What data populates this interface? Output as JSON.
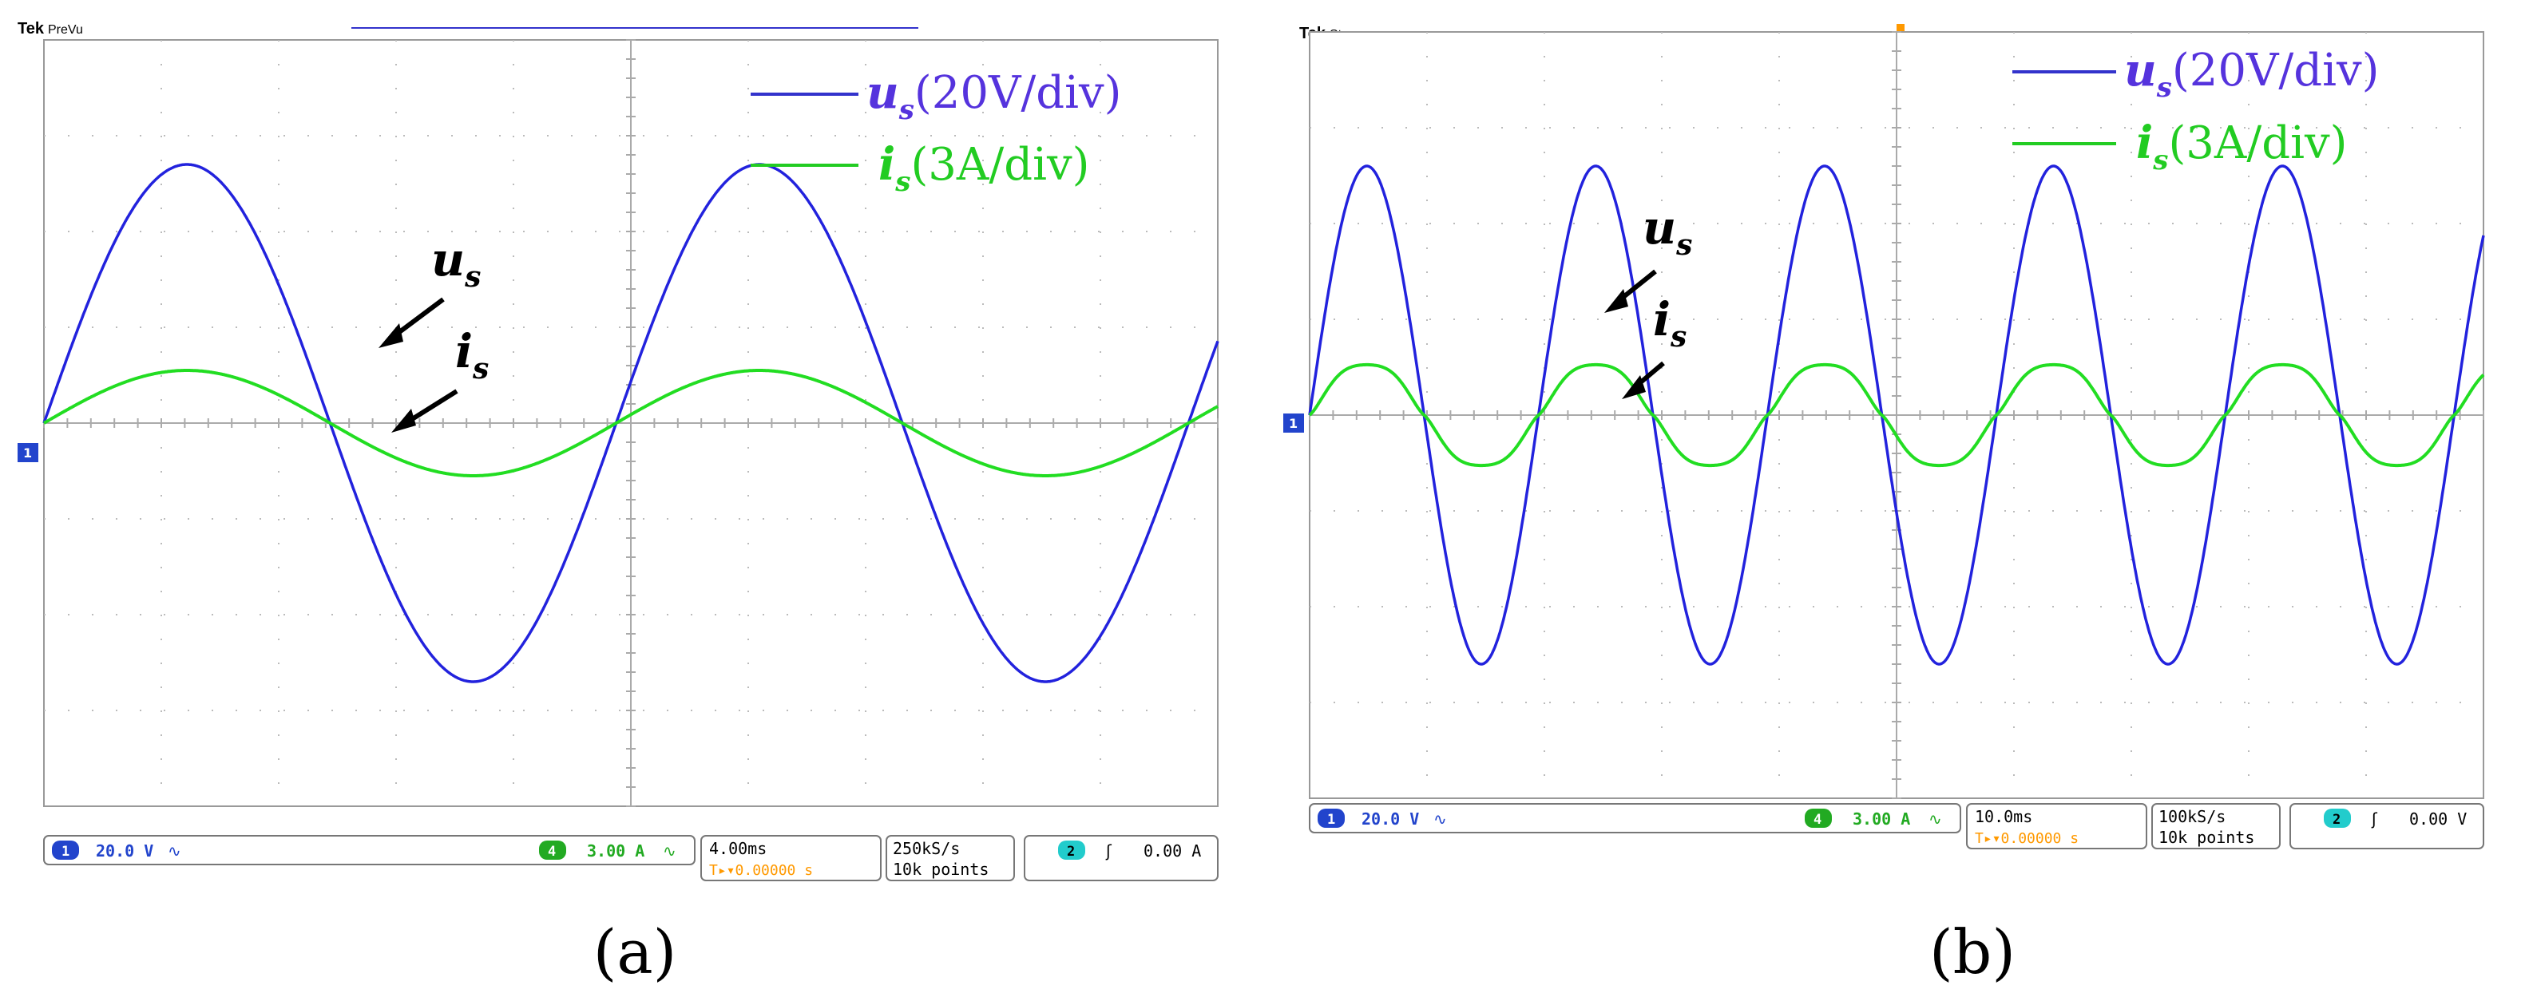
{
  "panels": [
    {
      "id": "a",
      "caption": "(a)",
      "brand": "Tek",
      "mode": "PreVu",
      "legend": {
        "us_label": "u",
        "us_sub": "s",
        "us_scale": "(20V/div)",
        "is_label": "i",
        "is_sub": "s",
        "is_scale": "(3A/div)"
      },
      "annotations": {
        "us_label": "u",
        "us_sub": "s",
        "is_label": "i",
        "is_sub": "s"
      },
      "status": {
        "ch1_num": "1",
        "ch1_scale": "20.0 V",
        "ch1_coupling": "∿",
        "ch4_num": "4",
        "ch4_scale": "3.00 A",
        "ch4_coupling": "∿",
        "timebase": "4.00ms",
        "trigger_pos": "0.00000 s",
        "sample_rate": "250kS/s",
        "record_length": "10k points",
        "trig_ch": "2",
        "trig_slope": "ʃ",
        "trig_level": "0.00 A"
      },
      "colors": {
        "voltage": "#2222dd",
        "current": "#22dd22",
        "accent": "#ff9900"
      }
    },
    {
      "id": "b",
      "caption": "(b)",
      "brand": "Tek",
      "mode": "Stop",
      "legend": {
        "us_label": "u",
        "us_sub": "s",
        "us_scale": "(20V/div)",
        "is_label": "i",
        "is_sub": "s",
        "is_scale": "(3A/div)"
      },
      "annotations": {
        "us_label": "u",
        "us_sub": "s",
        "is_label": "i",
        "is_sub": "s"
      },
      "status": {
        "ch1_num": "1",
        "ch1_scale": "20.0 V",
        "ch1_coupling": "∿",
        "ch4_num": "4",
        "ch4_scale": "3.00 A",
        "ch4_coupling": "∿",
        "timebase": "10.0ms",
        "trigger_pos": "0.00000 s",
        "sample_rate": "100kS/s",
        "record_length": "10k points",
        "trig_ch": "2",
        "trig_slope": "ʃ",
        "trig_level": "0.00 V"
      },
      "colors": {
        "voltage": "#2222dd",
        "current": "#22dd22",
        "accent": "#ff9900"
      }
    }
  ],
  "chart_data": [
    {
      "type": "line",
      "xlabel": "",
      "ylabel": "",
      "x_divisions": 10,
      "y_divisions": 8,
      "xlim": [
        0,
        40
      ],
      "x_unit": "ms",
      "grid": true,
      "legend_position": "top-right",
      "series": [
        {
          "name": "us(20V/div)",
          "kind": "sine",
          "amplitude_div": 2.7,
          "period": 19.5,
          "phase_deg": 0,
          "unit": "V",
          "scale_per_div": 20
        },
        {
          "name": "is(3A/div)",
          "kind": "sine",
          "amplitude_div": 0.55,
          "period": 19.5,
          "phase_deg": 0,
          "unit": "A",
          "scale_per_div": 3
        }
      ]
    },
    {
      "type": "line",
      "xlabel": "",
      "ylabel": "",
      "x_divisions": 10,
      "y_divisions": 8,
      "xlim": [
        0,
        100
      ],
      "x_unit": "ms",
      "grid": true,
      "legend_position": "top-right",
      "series": [
        {
          "name": "us(20V/div)",
          "kind": "sine",
          "amplitude_div": 2.6,
          "period": 19.5,
          "phase_deg": 0,
          "unit": "V",
          "scale_per_div": 20
        },
        {
          "name": "is(3A/div)",
          "kind": "distorted",
          "amplitude_div": 0.72,
          "period": 19.5,
          "phase_deg": 0,
          "unit": "A",
          "scale_per_div": 3
        }
      ]
    }
  ]
}
